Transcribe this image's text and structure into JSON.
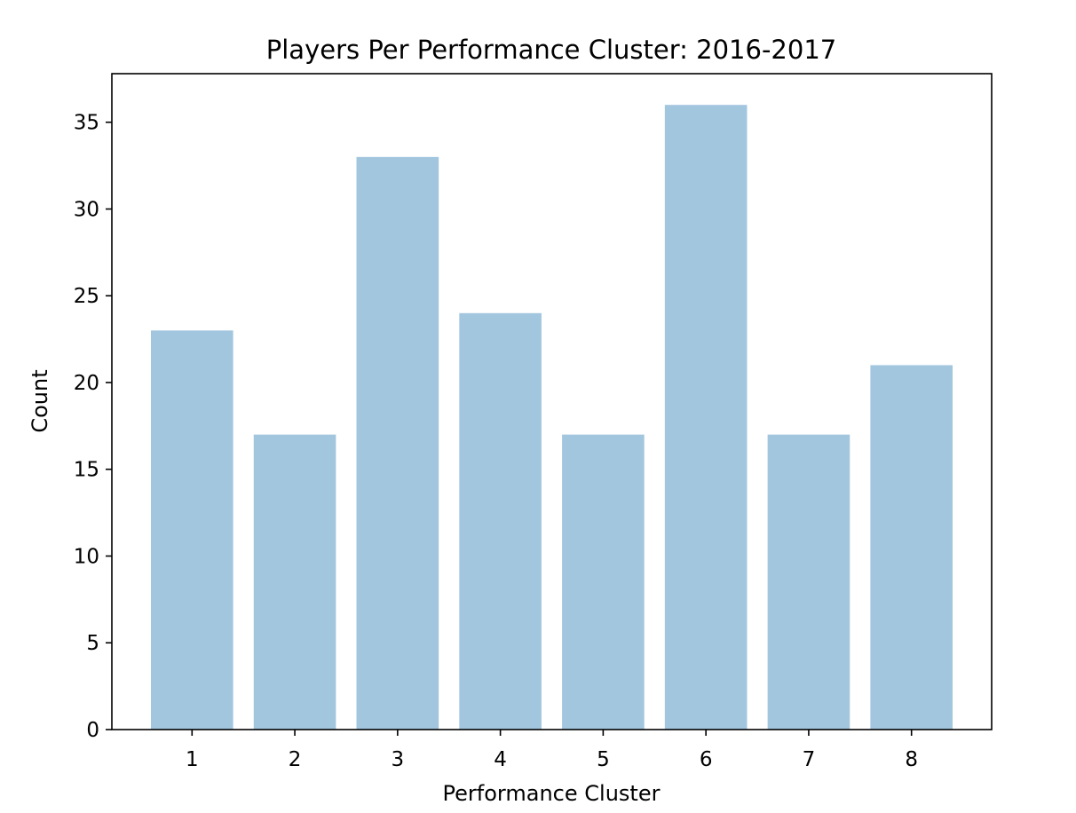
{
  "chart_data": {
    "type": "bar",
    "title": "Players Per Performance Cluster: 2016-2017",
    "xlabel": "Performance Cluster",
    "ylabel": "Count",
    "categories": [
      "1",
      "2",
      "3",
      "4",
      "5",
      "6",
      "7",
      "8"
    ],
    "values": [
      23,
      17,
      33,
      24,
      17,
      36,
      17,
      21
    ],
    "ylim": [
      0,
      37.8
    ],
    "yticks": [
      "0",
      "5",
      "10",
      "15",
      "20",
      "25",
      "30",
      "35"
    ],
    "bar_color": "#a3c6df",
    "grid": false,
    "legend": "none"
  }
}
